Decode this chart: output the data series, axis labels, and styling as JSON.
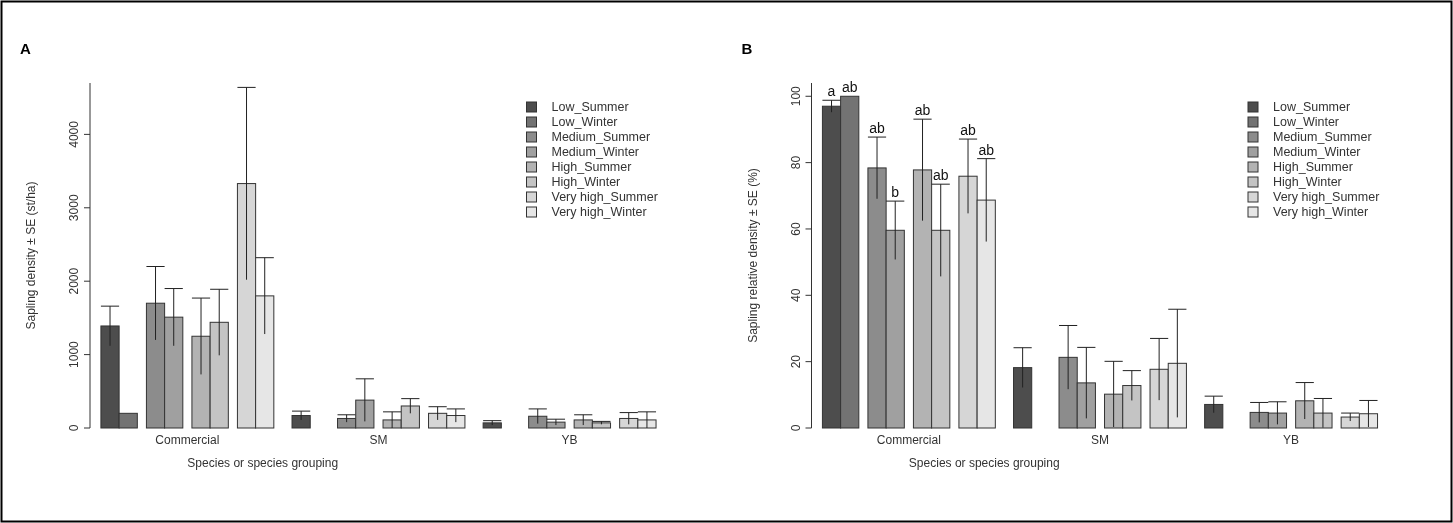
{
  "chart_data": [
    {
      "type": "bar",
      "title": "A",
      "xlabel": "Species or species grouping",
      "ylabel": "Sapling density ± SE (st/ha)",
      "categories": [
        "Commercial",
        "SM",
        "YB"
      ],
      "ylim": [
        0,
        4700
      ],
      "yticks": [
        0,
        1000,
        2000,
        3000,
        4000
      ],
      "legend": "top right",
      "series": [
        {
          "name": "Low_Summer",
          "color": "#4d4d4d",
          "values": [
            1390,
            170,
            70
          ],
          "errors": [
            270,
            60,
            30
          ]
        },
        {
          "name": "Low_Winter",
          "color": "#737373",
          "values": [
            200,
            0,
            0
          ],
          "errors": [
            null,
            null,
            null
          ]
        },
        {
          "name": "Medium_Summer",
          "color": "#8c8c8c",
          "values": [
            1700,
            130,
            160
          ],
          "errors": [
            500,
            50,
            100
          ]
        },
        {
          "name": "Medium_Winter",
          "color": "#a0a0a0",
          "values": [
            1510,
            380,
            80
          ],
          "errors": [
            390,
            290,
            40
          ]
        },
        {
          "name": "High_Summer",
          "color": "#b3b3b3",
          "values": [
            1250,
            110,
            110
          ],
          "errors": [
            520,
            110,
            70
          ]
        },
        {
          "name": "High_Winter",
          "color": "#c4c4c4",
          "values": [
            1440,
            300,
            70
          ],
          "errors": [
            450,
            100,
            20
          ]
        },
        {
          "name": "Very high_Summer",
          "color": "#d6d6d6",
          "values": [
            3330,
            200,
            130
          ],
          "errors": [
            1310,
            90,
            80
          ]
        },
        {
          "name": "Very high_Winter",
          "color": "#e6e6e6",
          "values": [
            1800,
            170,
            110
          ],
          "errors": [
            520,
            90,
            110
          ]
        }
      ]
    },
    {
      "type": "bar",
      "title": "B",
      "xlabel": "Species or species grouping",
      "ylabel": "Sapling relative density ± SE (%)",
      "categories": [
        "Commercial",
        "SM",
        "YB"
      ],
      "ylim": [
        0,
        104
      ],
      "yticks": [
        0,
        20,
        40,
        60,
        80,
        100
      ],
      "legend": "top right",
      "series": [
        {
          "name": "Low_Summer",
          "color": "#4d4d4d",
          "values": [
            97.0,
            18.2,
            7.1
          ],
          "errors": [
            1.8,
            6.0,
            2.5
          ]
        },
        {
          "name": "Low_Winter",
          "color": "#737373",
          "values": [
            100,
            0,
            0
          ],
          "errors": [
            null,
            null,
            null
          ]
        },
        {
          "name": "Medium_Summer",
          "color": "#8c8c8c",
          "values": [
            78.4,
            21.3,
            4.7
          ],
          "errors": [
            9.3,
            9.6,
            3.0
          ]
        },
        {
          "name": "Medium_Winter",
          "color": "#a0a0a0",
          "values": [
            59.6,
            13.6,
            4.5
          ],
          "errors": [
            8.8,
            10.7,
            3.4
          ]
        },
        {
          "name": "High_Summer",
          "color": "#b3b3b3",
          "values": [
            77.8,
            10.2,
            8.2
          ],
          "errors": [
            15.3,
            9.9,
            5.5
          ]
        },
        {
          "name": "High_Winter",
          "color": "#c4c4c4",
          "values": [
            59.6,
            12.8,
            4.5
          ],
          "errors": [
            13.9,
            4.5,
            4.4
          ]
        },
        {
          "name": "Very high_Summer",
          "color": "#d6d6d6",
          "values": [
            75.9,
            17.7,
            3.3
          ],
          "errors": [
            11.2,
            9.3,
            1.2
          ]
        },
        {
          "name": "Very high_Winter",
          "color": "#e6e6e6",
          "values": [
            68.7,
            19.5,
            4.3
          ],
          "errors": [
            12.5,
            16.3,
            4.0
          ]
        }
      ],
      "annotations": [
        "a",
        "ab",
        "ab",
        "b",
        "ab",
        "ab",
        "ab",
        "ab"
      ]
    }
  ]
}
